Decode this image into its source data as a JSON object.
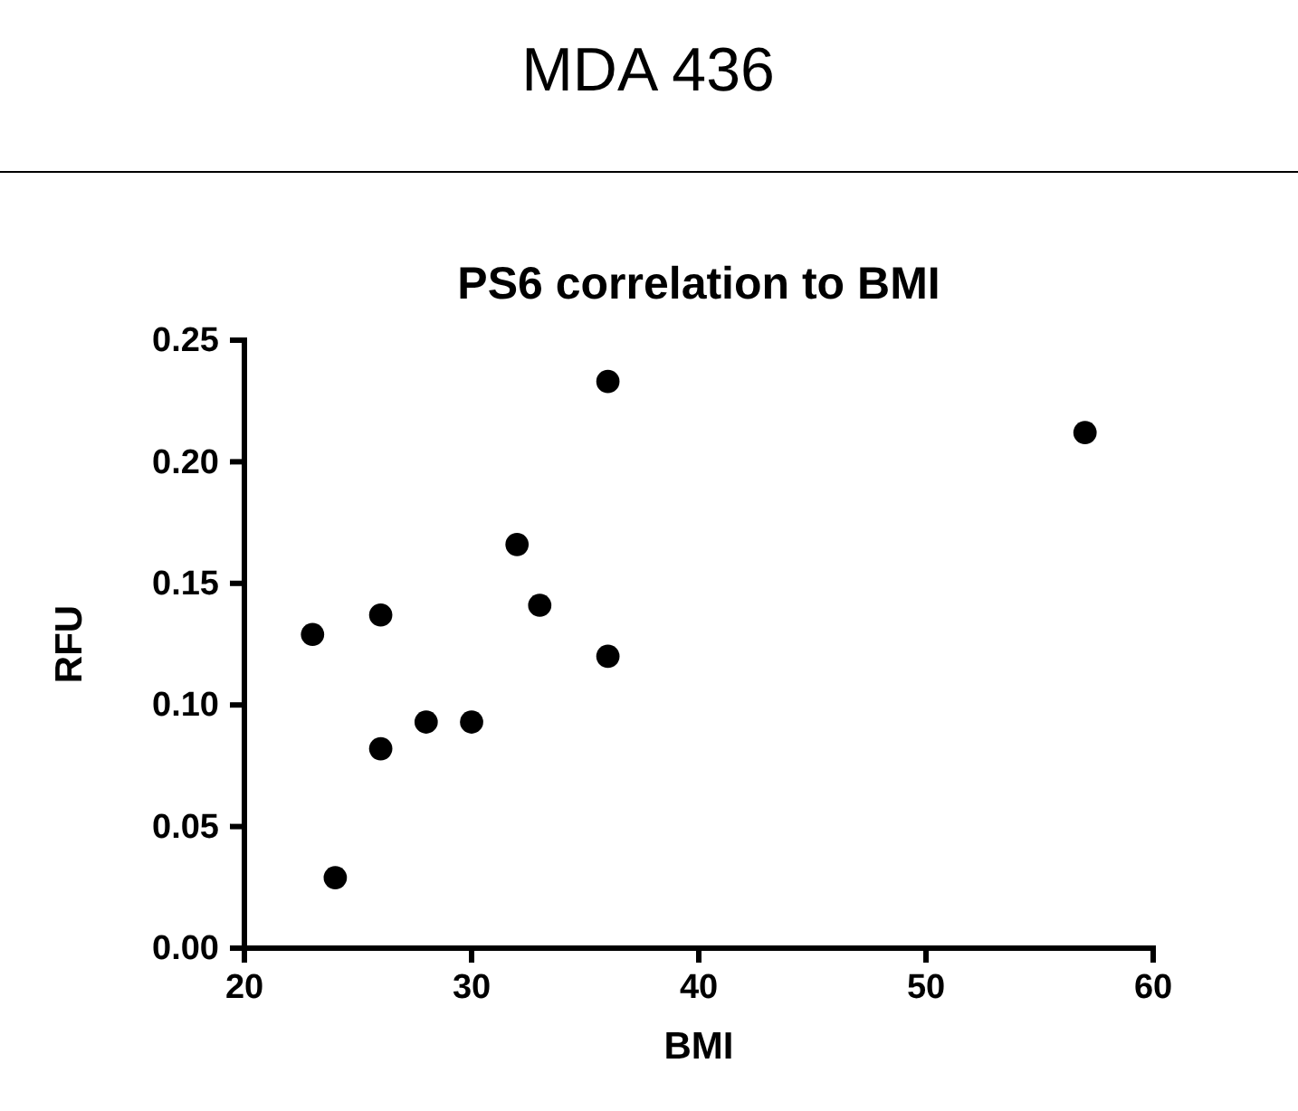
{
  "chart_data": {
    "type": "scatter",
    "title": "MDA 436",
    "subtitle": "PS6 correlation to BMI",
    "xlabel": "BMI",
    "ylabel": "RFU",
    "series": [
      {
        "color": "#000000",
        "x": [
          23,
          24,
          26,
          26,
          28,
          30,
          32,
          33,
          36,
          36,
          57
        ],
        "values": [
          0.129,
          0.029,
          0.137,
          0.082,
          0.093,
          0.093,
          0.166,
          0.141,
          0.233,
          0.12,
          0.212
        ]
      }
    ],
    "xlim": [
      20,
      60
    ],
    "xticks": [
      20,
      30,
      40,
      50,
      60
    ],
    "ylim": [
      0,
      0.25
    ],
    "yticks": [
      {
        "value": 0,
        "label": "0.00"
      },
      {
        "value": 0.05,
        "label": "0.05"
      },
      {
        "value": 0.1,
        "label": "0.10"
      },
      {
        "value": 0.15,
        "label": "0.15"
      },
      {
        "value": 0.2,
        "label": "0.20"
      },
      {
        "value": 0.25,
        "label": "0.25"
      }
    ],
    "grid": false,
    "marker": "circle"
  }
}
